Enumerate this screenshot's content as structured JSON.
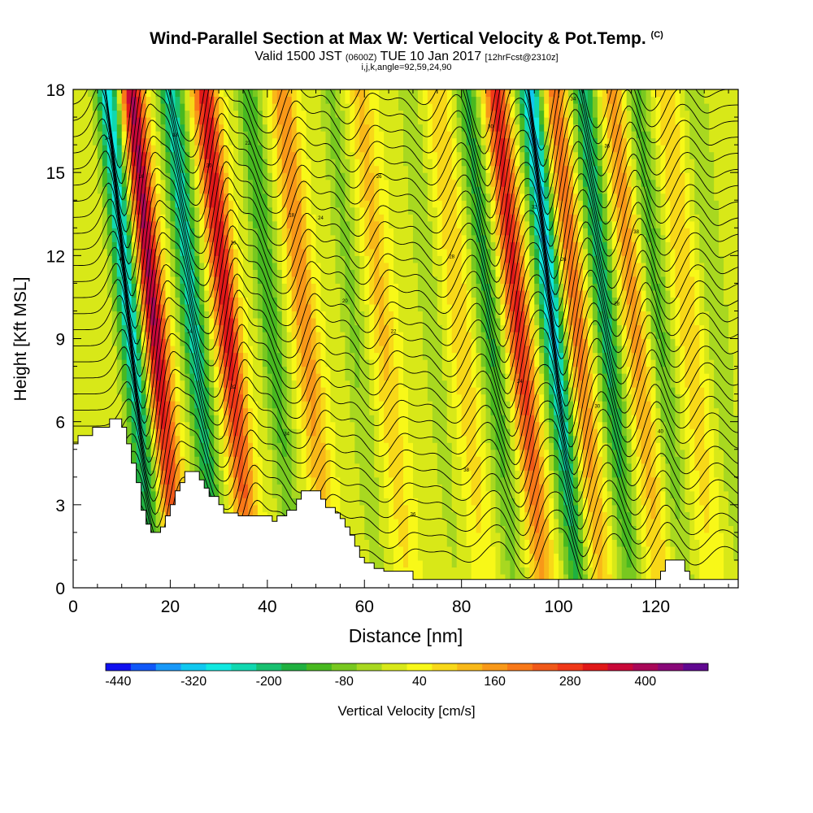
{
  "chart_data": {
    "type": "heatmap",
    "title": "Wind-Parallel Section at Max W: Vertical Velocity & Pot.Temp.",
    "title_mark": "(C)",
    "subtitle_main": "Valid 1500 JST",
    "subtitle_z": "(0600Z)",
    "subtitle_date": "TUE 10 Jan 2017",
    "subtitle_fcst": "[12hrFcst@2310z]",
    "subtitle2": "i,j,k,angle=92,59,24,90",
    "xlabel": "Distance [nm]",
    "ylabel": "Height [Kft MSL]",
    "xlim": [
      0,
      137
    ],
    "ylim": [
      0,
      18
    ],
    "xticks": [
      0,
      20,
      40,
      60,
      80,
      100,
      120
    ],
    "yticks": [
      0,
      3,
      6,
      9,
      12,
      15,
      18
    ],
    "colorbar": {
      "label": "Vertical Velocity [cm/s]",
      "tick_labels": [
        "-440",
        "-320",
        "-200",
        "-80",
        "40",
        "160",
        "280",
        "400"
      ],
      "colors": [
        "#1010f0",
        "#1058f8",
        "#1898f8",
        "#10c8f0",
        "#10e8e0",
        "#10d8b0",
        "#18c070",
        "#20b040",
        "#48b820",
        "#78c820",
        "#a8d820",
        "#d8e818",
        "#f8f818",
        "#f8d818",
        "#f8b818",
        "#f89818",
        "#f87818",
        "#f05818",
        "#f03818",
        "#e01818",
        "#c80838",
        "#a80858",
        "#880878",
        "#600890"
      ],
      "range": [
        -440,
        520
      ]
    },
    "contour_labels": [
      "14",
      "16",
      "18",
      "20",
      "22",
      "24",
      "26",
      "28",
      "30",
      "32",
      "34",
      "36",
      "38",
      "40"
    ],
    "waves": [
      {
        "x": 12,
        "w": -300
      },
      {
        "x": 17,
        "w": 380
      },
      {
        "x": 25,
        "w": -260
      },
      {
        "x": 32,
        "w": 330
      },
      {
        "x": 41,
        "w": -150
      },
      {
        "x": 48,
        "w": 170
      },
      {
        "x": 58,
        "w": -80
      },
      {
        "x": 64,
        "w": 100
      },
      {
        "x": 74,
        "w": -60
      },
      {
        "x": 80,
        "w": 90
      },
      {
        "x": 86,
        "w": -160
      },
      {
        "x": 92,
        "w": 300
      },
      {
        "x": 99,
        "w": -330
      },
      {
        "x": 104,
        "w": 200
      },
      {
        "x": 110,
        "w": -220
      },
      {
        "x": 116,
        "w": 150
      },
      {
        "x": 121,
        "w": -120
      },
      {
        "x": 127,
        "w": 90
      },
      {
        "x": 133,
        "w": -70
      }
    ],
    "terrain": [
      [
        0,
        5.2
      ],
      [
        1,
        5.5
      ],
      [
        3,
        5.5
      ],
      [
        4,
        5.8
      ],
      [
        7,
        5.8
      ],
      [
        7.5,
        6.1
      ],
      [
        9,
        6.1
      ],
      [
        10,
        5.8
      ],
      [
        11,
        5.2
      ],
      [
        12,
        4.5
      ],
      [
        13,
        3.8
      ],
      [
        14,
        2.8
      ],
      [
        15,
        2.3
      ],
      [
        16,
        2.0
      ],
      [
        18,
        2.2
      ],
      [
        19,
        2.6
      ],
      [
        20,
        3.0
      ],
      [
        21,
        3.5
      ],
      [
        22,
        3.8
      ],
      [
        23,
        4.2
      ],
      [
        25,
        4.2
      ],
      [
        26,
        3.9
      ],
      [
        27,
        3.6
      ],
      [
        28,
        3.3
      ],
      [
        30,
        3.0
      ],
      [
        31,
        2.7
      ],
      [
        34,
        2.6
      ],
      [
        36,
        2.6
      ],
      [
        39,
        2.6
      ],
      [
        41,
        2.4
      ],
      [
        42,
        2.6
      ],
      [
        44,
        2.8
      ],
      [
        46,
        3.2
      ],
      [
        47,
        3.5
      ],
      [
        50,
        3.5
      ],
      [
        51,
        3.2
      ],
      [
        52,
        2.9
      ],
      [
        54,
        2.7
      ],
      [
        55,
        2.5
      ],
      [
        56,
        2.2
      ],
      [
        57,
        1.9
      ],
      [
        58,
        1.5
      ],
      [
        59,
        1.1
      ],
      [
        60,
        0.9
      ],
      [
        62,
        0.7
      ],
      [
        64,
        0.6
      ],
      [
        68,
        0.6
      ],
      [
        70,
        0.3
      ],
      [
        76,
        0.3
      ],
      [
        84,
        0.3
      ],
      [
        100,
        0.3
      ],
      [
        120,
        0.3
      ],
      [
        121,
        0.6
      ],
      [
        122,
        1.0
      ],
      [
        125,
        1.0
      ],
      [
        126,
        0.6
      ],
      [
        127,
        0.3
      ],
      [
        137,
        0.3
      ]
    ]
  }
}
